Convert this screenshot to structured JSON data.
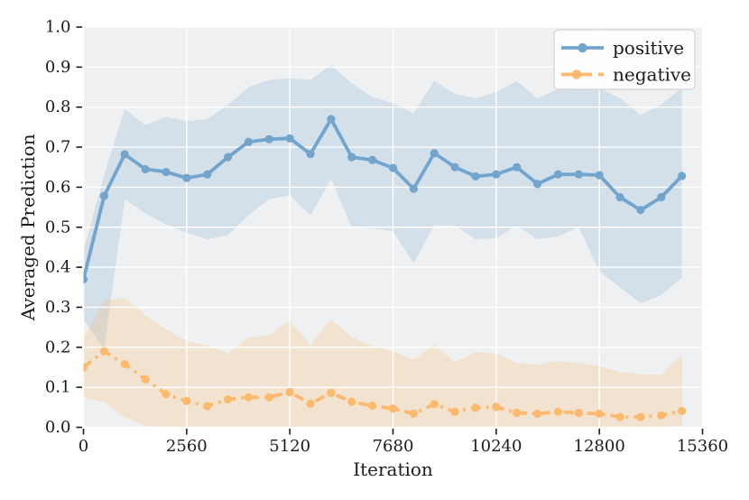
{
  "figure": {
    "background": "#ffffff",
    "plot_background": "#eff0f1",
    "grid_color": "#ffffff",
    "text_color": "#1c1c1c",
    "legend_background": "#ffffff",
    "legend_border": "#d4d4d4"
  },
  "chart_data": {
    "type": "line",
    "title": "",
    "xlabel": "Iteration",
    "ylabel": "Averaged Prediction",
    "xlim": [
      0,
      15360
    ],
    "ylim": [
      0.0,
      1.0
    ],
    "grid": true,
    "legend_position": "upper right",
    "x_ticks": [
      0,
      2560,
      5120,
      7680,
      10240,
      12800,
      15360
    ],
    "x_tick_labels": [
      "0",
      "2560",
      "5120",
      "7680",
      "10240",
      "12800",
      "15360"
    ],
    "y_ticks": [
      0.0,
      0.1,
      0.2,
      0.3,
      0.4,
      0.5,
      0.6,
      0.7,
      0.8,
      0.9,
      1.0
    ],
    "y_tick_labels": [
      "0.0",
      "0.1",
      "0.2",
      "0.3",
      "0.4",
      "0.5",
      "0.6",
      "0.7",
      "0.8",
      "0.9",
      "1.0"
    ],
    "x": [
      0,
      512,
      1024,
      1536,
      2048,
      2560,
      3072,
      3584,
      4096,
      4608,
      5120,
      5632,
      6144,
      6656,
      7168,
      7680,
      8192,
      8704,
      9216,
      9728,
      10240,
      10752,
      11264,
      11776,
      12288,
      12800,
      13312,
      13824,
      14336,
      14848
    ],
    "series": [
      {
        "name": "positive",
        "color": "#72a5ce",
        "line_style": "solid",
        "marker": "circle",
        "band_opacity": 0.22,
        "values": [
          0.37,
          0.578,
          0.682,
          0.645,
          0.638,
          0.623,
          0.632,
          0.675,
          0.713,
          0.72,
          0.722,
          0.683,
          0.77,
          0.675,
          0.668,
          0.648,
          0.596,
          0.685,
          0.65,
          0.627,
          0.632,
          0.65,
          0.608,
          0.632,
          0.632,
          0.63,
          0.575,
          0.543,
          0.575,
          0.628
        ],
        "band_upper": [
          0.44,
          0.63,
          0.795,
          0.755,
          0.775,
          0.765,
          0.77,
          0.805,
          0.85,
          0.868,
          0.872,
          0.868,
          0.905,
          0.86,
          0.825,
          0.81,
          0.785,
          0.866,
          0.833,
          0.822,
          0.837,
          0.865,
          0.822,
          0.845,
          0.855,
          0.848,
          0.822,
          0.78,
          0.807,
          0.848
        ],
        "band_lower": [
          0.27,
          0.195,
          0.57,
          0.535,
          0.507,
          0.486,
          0.47,
          0.48,
          0.53,
          0.57,
          0.58,
          0.53,
          0.62,
          0.5,
          0.497,
          0.49,
          0.41,
          0.505,
          0.504,
          0.47,
          0.473,
          0.504,
          0.47,
          0.477,
          0.5,
          0.39,
          0.35,
          0.31,
          0.33,
          0.375
        ]
      },
      {
        "name": "negative",
        "color": "#fdb96e",
        "line_style": "dashdot",
        "marker": "circle",
        "band_opacity": 0.25,
        "values": [
          0.15,
          0.19,
          0.158,
          0.12,
          0.083,
          0.066,
          0.053,
          0.07,
          0.075,
          0.075,
          0.088,
          0.059,
          0.086,
          0.064,
          0.054,
          0.047,
          0.034,
          0.058,
          0.039,
          0.049,
          0.051,
          0.036,
          0.034,
          0.039,
          0.036,
          0.034,
          0.026,
          0.026,
          0.03,
          0.041
        ],
        "band_upper": [
          0.225,
          0.315,
          0.325,
          0.28,
          0.245,
          0.215,
          0.205,
          0.185,
          0.225,
          0.23,
          0.267,
          0.207,
          0.269,
          0.226,
          0.203,
          0.19,
          0.169,
          0.207,
          0.162,
          0.188,
          0.184,
          0.161,
          0.157,
          0.165,
          0.161,
          0.153,
          0.138,
          0.133,
          0.131,
          0.18
        ],
        "band_lower": [
          0.075,
          0.063,
          0.025,
          0.004,
          0.0,
          0.0,
          0.0,
          0.0,
          0.0,
          0.0,
          0.0,
          0.0,
          0.0,
          0.0,
          0.0,
          0.0,
          0.0,
          0.0,
          0.0,
          0.0,
          0.0,
          0.0,
          0.0,
          0.0,
          0.0,
          0.0,
          0.0,
          0.0,
          0.0,
          0.005
        ]
      }
    ],
    "legend": {
      "entries": [
        {
          "label": "positive"
        },
        {
          "label": "negative"
        }
      ]
    }
  }
}
